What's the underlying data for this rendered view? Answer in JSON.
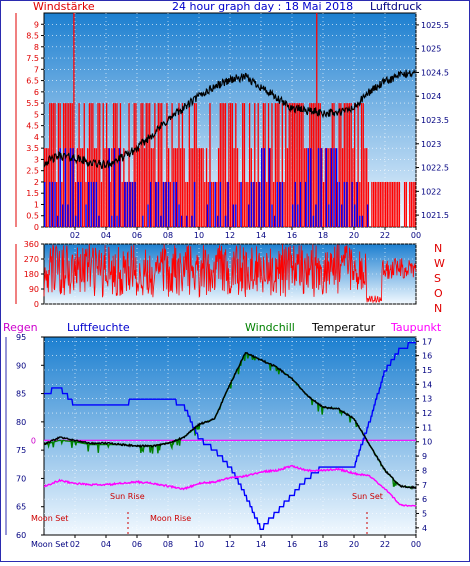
{
  "header": {
    "left_label": "Windstärke",
    "title": "24 hour graph day : 18 Mai 2018",
    "right_label": "Luftdruck"
  },
  "wind_direction_letters": [
    "N",
    "W",
    "S",
    "O",
    "N"
  ],
  "bottom_header": {
    "regen": "Regen",
    "luftfeuchte": "Luftfeuchte",
    "windchill": "Windchill",
    "temperatur": "Temperatur",
    "taupunkt": "Taupunkt"
  },
  "annotations": {
    "sun_rise": "Sun Rise",
    "sun_set": "Sun Set",
    "moon_set_1": "Moon Set",
    "moon_rise": "Moon Rise",
    "moon_set_axis": "Moon Set"
  },
  "colors": {
    "frame": "#2b2bb0",
    "bg_top": "#1c7fd0",
    "bg_bottom": "#f2f9ff",
    "wind": "#ff0000",
    "gust": "#0000ff",
    "pressure": "#000000",
    "direction": "#ff0000",
    "humidity": "#0000ff",
    "windchill": "#008000",
    "temperature": "#000000",
    "dewpoint": "#ff00ff",
    "zero_line": "#ff00ff",
    "left_red": "#e00000"
  },
  "chart_data": [
    {
      "type": "bar",
      "name": "wind-pressure",
      "x_ticks": [
        "02",
        "04",
        "06",
        "08",
        "10",
        "12",
        "14",
        "16",
        "18",
        "20",
        "22",
        "00"
      ],
      "y_left_ticks": [
        "0",
        "0.5",
        "1",
        "1.5",
        "2",
        "2.5",
        "3",
        "3.5",
        "4",
        "4.5",
        "5",
        "5.5",
        "6",
        "6.5",
        "7",
        "7.5",
        "8",
        "8.5",
        "9"
      ],
      "y_right_ticks": [
        "1021.5",
        "1022",
        "1022.5",
        "1023",
        "1023.5",
        "1024",
        "1024.5",
        "1025",
        "1025.5"
      ],
      "ylim_left": [
        0,
        9.5
      ],
      "ylim_right": [
        1021.25,
        1025.75
      ],
      "wind_hourly_max": [
        5.5,
        9.5,
        5.5,
        5.5,
        5.5,
        5.5,
        5.5,
        5.5,
        5.5,
        5.5,
        5.5,
        5.5,
        5.5,
        5.5,
        5.5,
        5.5,
        5.5,
        9.5,
        5.5,
        5.5,
        5.5,
        2.0,
        2.0,
        2.0
      ],
      "gust_hourly_max": [
        2.0,
        3.5,
        2.0,
        2.0,
        3.5,
        2.0,
        2.0,
        2.0,
        2.0,
        2.0,
        2.0,
        2.0,
        2.0,
        2.0,
        3.5,
        2.0,
        2.0,
        3.5,
        3.5,
        2.0,
        2.0,
        0,
        0,
        0
      ],
      "pressure_x": [
        0,
        1,
        2,
        3,
        4,
        5,
        6,
        7,
        8,
        9,
        10,
        11,
        12,
        13,
        14,
        15,
        16,
        17,
        18,
        19,
        20,
        21,
        22,
        23,
        24
      ],
      "pressure_values": [
        1022.6,
        1022.75,
        1022.7,
        1022.6,
        1022.55,
        1022.7,
        1022.9,
        1023.2,
        1023.5,
        1023.75,
        1024.0,
        1024.2,
        1024.35,
        1024.4,
        1024.2,
        1023.95,
        1023.75,
        1023.7,
        1023.65,
        1023.65,
        1023.75,
        1024.1,
        1024.3,
        1024.45,
        1024.5
      ],
      "grid": true
    },
    {
      "type": "line",
      "name": "wind-direction",
      "y_ticks": [
        "0",
        "90",
        "180",
        "270",
        "360"
      ],
      "ylim": [
        0,
        360
      ],
      "x_ticks": [
        "02",
        "04",
        "06",
        "08",
        "10",
        "12",
        "14",
        "16",
        "18",
        "20",
        "22",
        "00"
      ],
      "grid": true
    },
    {
      "type": "line",
      "name": "humidity-temperature",
      "x_ticks": [
        "Moon Set",
        "02",
        "04",
        "06",
        "08",
        "10",
        "12",
        "14",
        "16",
        "18",
        "20",
        "22",
        "00"
      ],
      "y_left_ticks": [
        "60",
        "65",
        "70",
        "75",
        "80",
        "85",
        "90",
        "95"
      ],
      "y_left_zero_label": "0",
      "y_right_ticks": [
        "4",
        "5",
        "6",
        "7",
        "8",
        "9",
        "10",
        "11",
        "12",
        "13",
        "14",
        "15",
        "16",
        "17"
      ],
      "ylim_left": [
        60,
        95
      ],
      "ylim_right": [
        3.5,
        17.3
      ],
      "zero_line_value": 10.1,
      "x": [
        0,
        1,
        2,
        3,
        4,
        5,
        6,
        7,
        8,
        9,
        10,
        11,
        12,
        13,
        14,
        15,
        16,
        17,
        18,
        19,
        20,
        21,
        22,
        23,
        24
      ],
      "series": [
        {
          "name": "Luftfeuchte",
          "axis": "left",
          "values": [
            85,
            86,
            83,
            83,
            83,
            83,
            84,
            84,
            84,
            83,
            77,
            75,
            72,
            67,
            61,
            64,
            67,
            70,
            72,
            72,
            72,
            80,
            89,
            93,
            94
          ]
        },
        {
          "name": "Windchill",
          "axis": "right",
          "values": [
            9.8,
            10.1,
            10.0,
            9.8,
            9.8,
            9.8,
            9.7,
            9.7,
            9.9,
            10.3,
            11.2,
            11.6,
            14.0,
            16.2,
            15.7,
            15.2,
            14.4,
            13.2,
            12.4,
            12.3,
            11.6,
            9.8,
            8.0,
            6.9,
            6.8
          ]
        },
        {
          "name": "Temperatur",
          "axis": "right",
          "values": [
            9.8,
            10.3,
            10.1,
            9.9,
            9.9,
            9.8,
            9.7,
            9.7,
            9.9,
            10.3,
            11.2,
            11.6,
            14.0,
            16.2,
            15.7,
            15.2,
            14.4,
            13.2,
            12.4,
            12.3,
            11.6,
            9.8,
            8.0,
            6.9,
            6.8
          ]
        },
        {
          "name": "Taupunkt",
          "axis": "right",
          "values": [
            6.9,
            7.3,
            7.1,
            7.0,
            7.0,
            7.1,
            7.2,
            7.1,
            6.9,
            6.7,
            7.1,
            7.2,
            7.5,
            7.6,
            7.9,
            8.0,
            8.3,
            8.0,
            8.0,
            8.1,
            7.8,
            7.6,
            6.7,
            5.6,
            5.5
          ]
        }
      ],
      "grid": true
    }
  ]
}
